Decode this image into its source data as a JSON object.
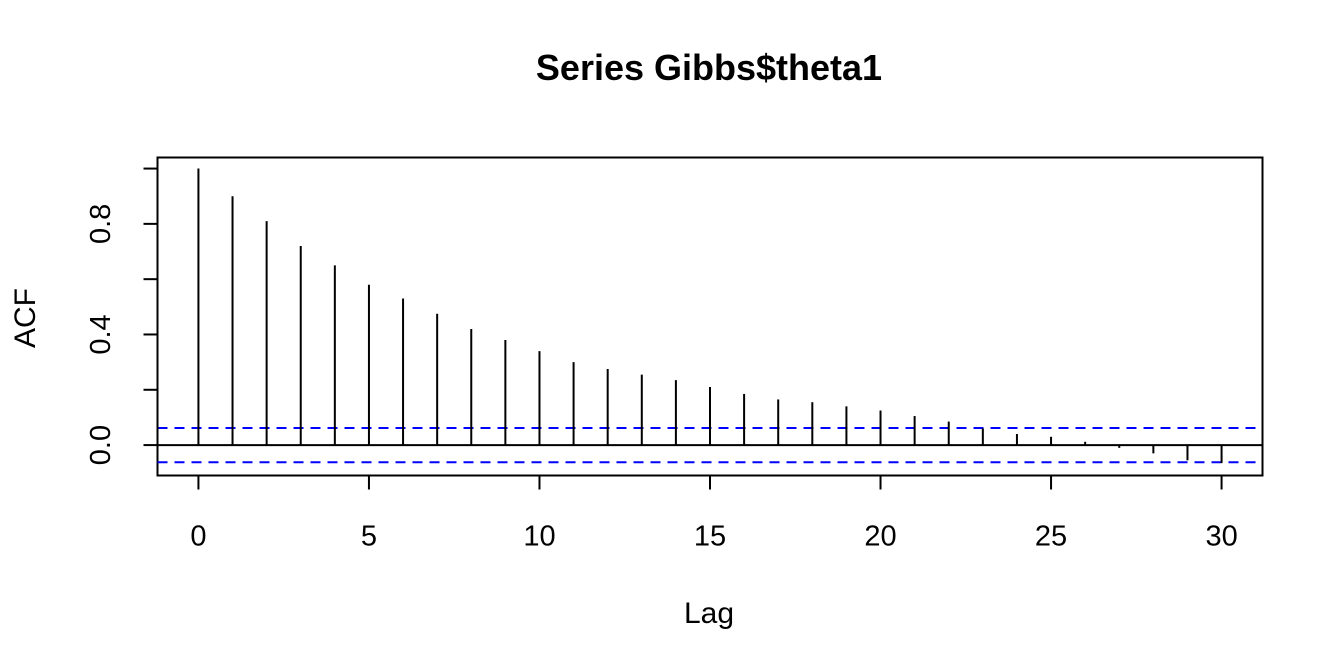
{
  "chart_data": {
    "type": "bar",
    "title": "Series  Gibbs$theta1",
    "xlabel": "Lag",
    "ylabel": "ACF",
    "x": [
      0,
      1,
      2,
      3,
      4,
      5,
      6,
      7,
      8,
      9,
      10,
      11,
      12,
      13,
      14,
      15,
      16,
      17,
      18,
      19,
      20,
      21,
      22,
      23,
      24,
      25,
      26,
      27,
      28,
      29,
      30
    ],
    "values": [
      1.0,
      0.9,
      0.81,
      0.72,
      0.65,
      0.58,
      0.53,
      0.475,
      0.42,
      0.38,
      0.34,
      0.3,
      0.275,
      0.255,
      0.235,
      0.21,
      0.185,
      0.165,
      0.155,
      0.14,
      0.125,
      0.105,
      0.085,
      0.06,
      0.04,
      0.03,
      0.012,
      -0.01,
      -0.03,
      -0.055,
      -0.065
    ],
    "confidence_bounds": [
      0.062,
      -0.062
    ],
    "xlim": [
      -1.2,
      31.2
    ],
    "ylim": [
      -0.11,
      1.04
    ],
    "x_ticks": [
      0,
      5,
      10,
      15,
      20,
      25,
      30
    ],
    "x_tick_labels": [
      "0",
      "5",
      "10",
      "15",
      "20",
      "25",
      "30"
    ],
    "y_ticks": [
      0.0,
      0.2,
      0.4,
      0.6,
      0.8,
      1.0
    ],
    "y_tick_labels": [
      "0.0",
      "0.4",
      "0.8"
    ],
    "y_labeled_ticks": [
      0.0,
      0.4,
      0.8
    ],
    "colors": {
      "bars": "#000000",
      "zero_line": "#000000",
      "bounds": "#0000ff",
      "frame": "#000000"
    },
    "grid": false,
    "legend": "none"
  }
}
